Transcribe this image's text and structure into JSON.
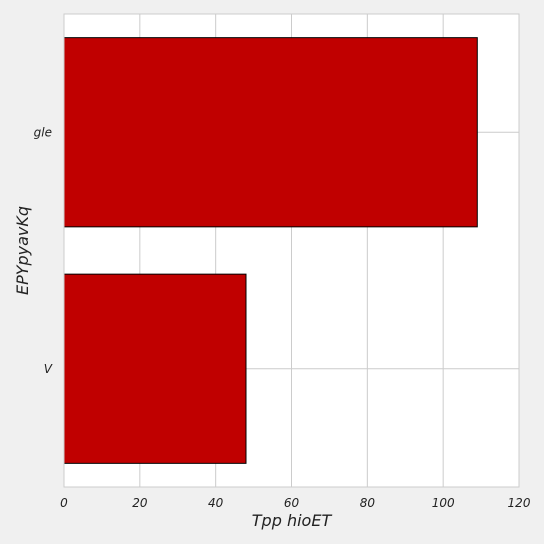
{
  "chart_data": {
    "type": "bar",
    "orientation": "horizontal",
    "categories": [
      "V",
      "gle"
    ],
    "values": [
      48,
      109
    ],
    "xlabel": "Tpp hioET",
    "ylabel": "EPYpyavKq",
    "xlim": [
      0,
      120
    ],
    "xticks": [
      0,
      20,
      40,
      60,
      80,
      100,
      120
    ],
    "xtick_labels": [
      "0",
      "20",
      "40",
      "60",
      "80",
      "100",
      "120"
    ],
    "grid": true,
    "bar_color": "#c00000",
    "bar_edge_color": "#000000",
    "plot_background": "#ffffff",
    "figure_background": "#f0f0f0",
    "grid_color": "#cccccc"
  }
}
